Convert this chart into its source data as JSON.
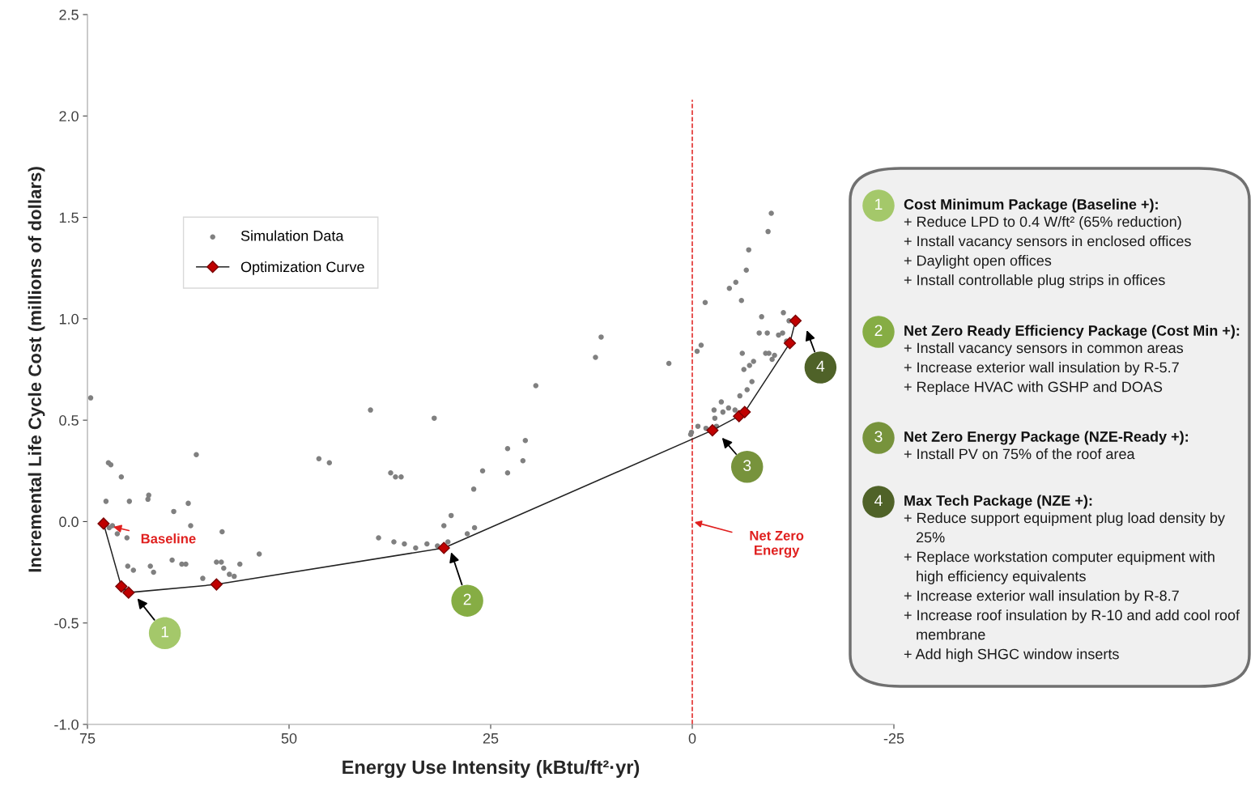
{
  "chart_data": {
    "type": "scatter",
    "xlabel": "Energy Use Intensity (kBtu/ft²·yr)",
    "ylabel": "Incremental Life Cycle Cost (millions of dollars)",
    "xlim": [
      75,
      -25
    ],
    "xticks": [
      75,
      50,
      25,
      0,
      -25
    ],
    "ylim": [
      -1.0,
      2.5
    ],
    "yticks": [
      {
        "value": -1.0,
        "label": "-1.0"
      },
      {
        "value": -0.5,
        "label": "-0.5"
      },
      {
        "value": 0,
        "label": "0.0"
      },
      {
        "value": 0.5,
        "label": "0.5"
      },
      {
        "value": 1.0,
        "label": "1.0"
      },
      {
        "value": 1.5,
        "label": "1.5"
      },
      {
        "value": 2.0,
        "label": "2.0"
      },
      {
        "value": 2.5,
        "label": "2.5"
      }
    ],
    "grid": false,
    "legend": "top left",
    "series": [
      {
        "name": "Simulation Data",
        "type": "scatter",
        "marker": "circle",
        "color": "#808080",
        "x": [
          74.6,
          72.4,
          72.1,
          70.8,
          72.7,
          69.8,
          67.4,
          67.5,
          64.3,
          62.5,
          62.2,
          61.5,
          58.3,
          72.3,
          71.3,
          70.1,
          70.0,
          69.3,
          67.2,
          66.8,
          64.5,
          63.3,
          62.8,
          60.7,
          59.0,
          58.4,
          58.1,
          57.4,
          56.8,
          56.1,
          53.7,
          70.3,
          71.9,
          39.9,
          32.0,
          46.3,
          45.0,
          37.4,
          36.8,
          36.1,
          19.4,
          20.7,
          22.9,
          21.0,
          26.0,
          22.9,
          27.1,
          29.9,
          30.8,
          27.0,
          27.9,
          38.9,
          37.0,
          35.7,
          34.3,
          32.9,
          31.6,
          30.3,
          11.3,
          12.0,
          2.9,
          0.1,
          -9.8,
          -9.4,
          -7.0,
          -6.7,
          -4.6,
          -5.4,
          -6.1,
          -1.6,
          -1.1,
          -0.6,
          -8.6,
          -11.3,
          -12.0,
          -8.3,
          -9.3,
          -10.7,
          -11.2,
          -11.7,
          -6.2,
          -9.1,
          -9.5,
          -10.2,
          -9.9,
          -7.6,
          -7.1,
          -6.4,
          -7.4,
          -6.8,
          -5.9,
          -3.6,
          -2.7,
          -3.8,
          -4.5,
          -5.3,
          -2.8,
          -3.0,
          -0.7,
          -1.7,
          0.2
        ],
        "values": [
          0.61,
          0.29,
          0.28,
          0.22,
          0.1,
          0.1,
          0.13,
          0.11,
          0.05,
          0.09,
          -0.02,
          0.33,
          -0.05,
          -0.03,
          -0.06,
          -0.08,
          -0.22,
          -0.24,
          -0.22,
          -0.25,
          -0.19,
          -0.21,
          -0.21,
          -0.28,
          -0.2,
          -0.2,
          -0.23,
          -0.26,
          -0.27,
          -0.21,
          -0.16,
          -0.34,
          -0.02,
          0.55,
          0.51,
          0.31,
          0.29,
          0.24,
          0.22,
          0.22,
          0.67,
          0.4,
          0.36,
          0.3,
          0.25,
          0.24,
          0.16,
          0.03,
          -0.02,
          -0.03,
          -0.06,
          -0.08,
          -0.1,
          -0.11,
          -0.13,
          -0.11,
          -0.12,
          -0.1,
          0.91,
          0.81,
          0.78,
          0.44,
          1.52,
          1.43,
          1.34,
          1.24,
          1.15,
          1.18,
          1.09,
          1.08,
          0.87,
          0.84,
          1.01,
          1.03,
          0.99,
          0.93,
          0.93,
          0.92,
          0.93,
          0.89,
          0.83,
          0.83,
          0.83,
          0.82,
          0.8,
          0.79,
          0.77,
          0.75,
          0.69,
          0.65,
          0.62,
          0.59,
          0.55,
          0.54,
          0.56,
          0.55,
          0.51,
          0.47,
          0.47,
          0.46,
          0.43
        ]
      },
      {
        "name": "Optimization Curve",
        "type": "line",
        "marker": "diamond",
        "color": "#c00000",
        "x": [
          73.0,
          70.8,
          69.9,
          59.0,
          30.8,
          -2.5,
          -5.8,
          -6.5,
          -12.1,
          -12.8
        ],
        "values": [
          -0.01,
          -0.32,
          -0.35,
          -0.31,
          -0.13,
          0.45,
          0.52,
          0.54,
          0.88,
          0.99
        ]
      }
    ],
    "ref_lines": [
      {
        "axis": "x",
        "value": 0,
        "label": "Net Zero\nEnergy",
        "color": "#e0201f",
        "line_style": "dashed"
      }
    ],
    "annotations": [
      {
        "text": "1",
        "x": 65.4,
        "y": -0.55
      },
      {
        "text": "2",
        "x": 27.9,
        "y": -0.39
      },
      {
        "text": "3",
        "x": -6.8,
        "y": 0.27
      },
      {
        "text": "4",
        "x": -15.9,
        "y": 0.76
      },
      "Baseline",
      "Cost Minimum Package (Baseline +):\n+ Reduce LPD to 0.4 W/ft² (65% reduction)\n+ Install vacancy sensors in enclosed offices\n+ Daylight open offices\n+ Install controllable plug strips in offices",
      "Net Zero Ready Efficiency Package (Cost Min +):\n+ Install vacancy sensors in common areas\n+ Increase exterior wall insulation by R-5.7\n+ Replace HVAC with GSHP and DOAS",
      "Net Zero Energy Package (NZE-Ready +):\n+ Install PV on 75% of the roof area",
      "Max Tech Package (NZE +):\n+ Reduce support equipment plug load density by\n   25%\n+ Replace workstation computer equipment with\n   high efficiency equivalents\n+ Increase exterior wall insulation by R-8.7\n+ Increase roof insulation by R-10 and add cool roof\n   membrane\n+ Add high SHGC window inserts"
    ]
  }
}
